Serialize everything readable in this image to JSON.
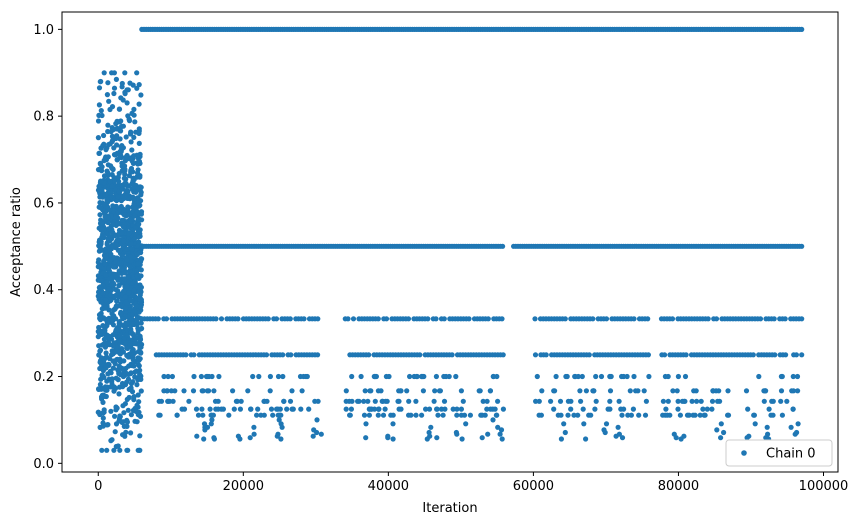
{
  "chart_data": {
    "type": "scatter",
    "title": "",
    "xlabel": "Iteration",
    "ylabel": "Acceptance ratio",
    "xlim": [
      -5000,
      102000
    ],
    "ylim": [
      -0.02,
      1.04
    ],
    "xticks": [
      0,
      20000,
      40000,
      60000,
      80000,
      100000
    ],
    "yticks": [
      0.0,
      0.2,
      0.4,
      0.6,
      0.8,
      1.0
    ],
    "ytick_labels": [
      "0.0",
      "0.2",
      "0.4",
      "0.6",
      "0.8",
      "1.0"
    ],
    "grid": false,
    "legend_position": "bottom-right",
    "series": [
      {
        "name": "Chain 0",
        "color": "#1f77b4",
        "marker": "circle",
        "segments": [
          {
            "x_start": 0,
            "x_end": 6000,
            "y_distribution": "dense scatter",
            "y_range": [
              0.03,
              0.9
            ]
          },
          {
            "x_start": 6000,
            "x_end": 97000,
            "y": 1.0,
            "pattern": "continuous"
          },
          {
            "x_start": 6000,
            "x_end": 97000,
            "y": 0.5,
            "pattern": "mostly continuous"
          },
          {
            "x_start": 6000,
            "x_end": 97000,
            "y": 0.333,
            "pattern": "intermittent"
          },
          {
            "x_start": 8000,
            "x_end": 97000,
            "y": 0.25,
            "pattern": "intermittent"
          },
          {
            "x_start": 8000,
            "x_end": 97000,
            "y": 0.2,
            "pattern": "sparse"
          },
          {
            "x_start": 8000,
            "x_end": 97000,
            "y": 0.167,
            "pattern": "sparse"
          },
          {
            "x_start": 8000,
            "x_end": 97000,
            "y": 0.143,
            "pattern": "sparse"
          },
          {
            "x_start": 8000,
            "x_end": 97000,
            "y": 0.125,
            "pattern": "sparse"
          },
          {
            "x_start": 8000,
            "x_end": 97000,
            "y": 0.111,
            "pattern": "sparse"
          },
          {
            "x_start": 8000,
            "x_end": 97000,
            "y": 0.1,
            "pattern": "very sparse"
          },
          {
            "x_start": 8000,
            "x_end": 97000,
            "y": 0.091,
            "pattern": "very sparse"
          },
          {
            "x_start": 8000,
            "x_end": 97000,
            "y": 0.083,
            "pattern": "very sparse"
          },
          {
            "x_start": 8000,
            "x_end": 97000,
            "y": 0.077,
            "pattern": "very sparse"
          },
          {
            "x_start": 8000,
            "x_end": 97000,
            "y": 0.071,
            "pattern": "very sparse"
          },
          {
            "x_start": 8000,
            "x_end": 97000,
            "y": 0.067,
            "pattern": "very sparse"
          },
          {
            "x_start": 8000,
            "x_end": 97000,
            "y": 0.0625,
            "pattern": "very sparse"
          },
          {
            "x_start": 8000,
            "x_end": 97000,
            "y": 0.059,
            "pattern": "very sparse"
          },
          {
            "x_start": 8000,
            "x_end": 97000,
            "y": 0.056,
            "pattern": "very sparse"
          }
        ]
      }
    ]
  }
}
